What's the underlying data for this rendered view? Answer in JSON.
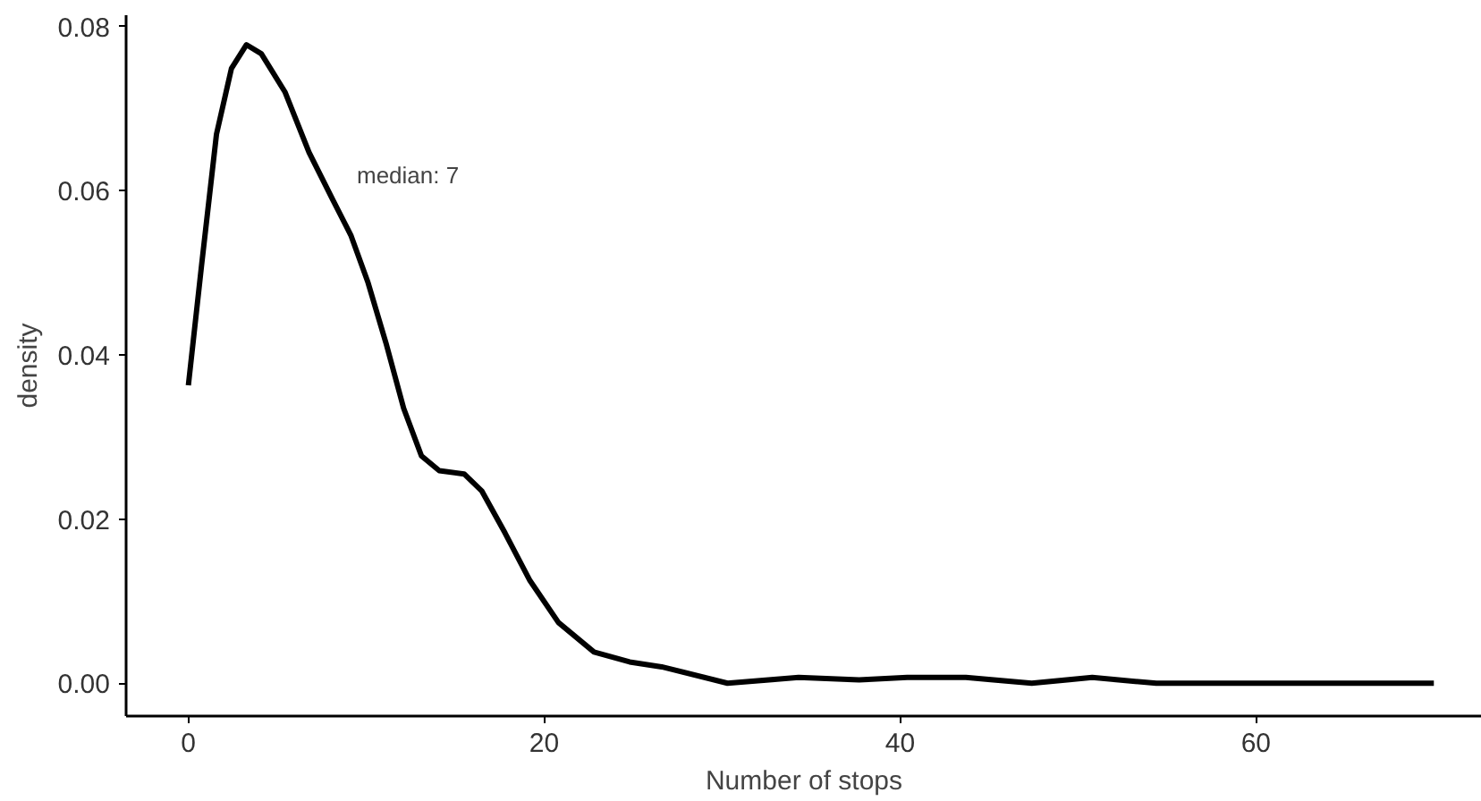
{
  "chart_data": {
    "type": "line",
    "xlabel": "Number of stops",
    "ylabel": "density",
    "x": [
      0,
      0.74,
      1.58,
      2.42,
      3.26,
      4.1,
      5.44,
      6.78,
      8.12,
      9.13,
      10.1,
      11.1,
      12.1,
      13.1,
      14.1,
      15.5,
      16.5,
      17.8,
      19.2,
      20.8,
      22.8,
      24.8,
      26.6,
      30.3,
      34.3,
      37.7,
      40.4,
      43.7,
      47.4,
      50.8,
      54.4,
      70
    ],
    "series": [
      {
        "color": "#000000",
        "values": [
          0.0363,
          0.0509,
          0.0669,
          0.0749,
          0.0778,
          0.0767,
          0.072,
          0.0647,
          0.0589,
          0.0546,
          0.0488,
          0.0415,
          0.0335,
          0.0277,
          0.0259,
          0.0255,
          0.0234,
          0.0183,
          0.0125,
          0.0074,
          0.0038,
          0.0026,
          0.002,
          0.0,
          0.0007,
          0.0004,
          0.0007,
          0.0007,
          0.0,
          0.0007,
          0.0,
          0.0
        ]
      }
    ],
    "xlim": [
      -3.5,
      72.7
    ],
    "ylim": [
      -0.004,
      0.0814
    ],
    "xticks": [
      0,
      20,
      40,
      60
    ],
    "yticks": [
      {
        "value": 0,
        "label": "0.00"
      },
      {
        "value": 0.02,
        "label": "0.02"
      },
      {
        "value": 0.04,
        "label": "0.04"
      },
      {
        "value": 0.06,
        "label": "0.06"
      },
      {
        "value": 0.08,
        "label": "0.08"
      }
    ],
    "annotations": [
      "median: 7"
    ],
    "marker": "none",
    "line_style": "solid"
  }
}
